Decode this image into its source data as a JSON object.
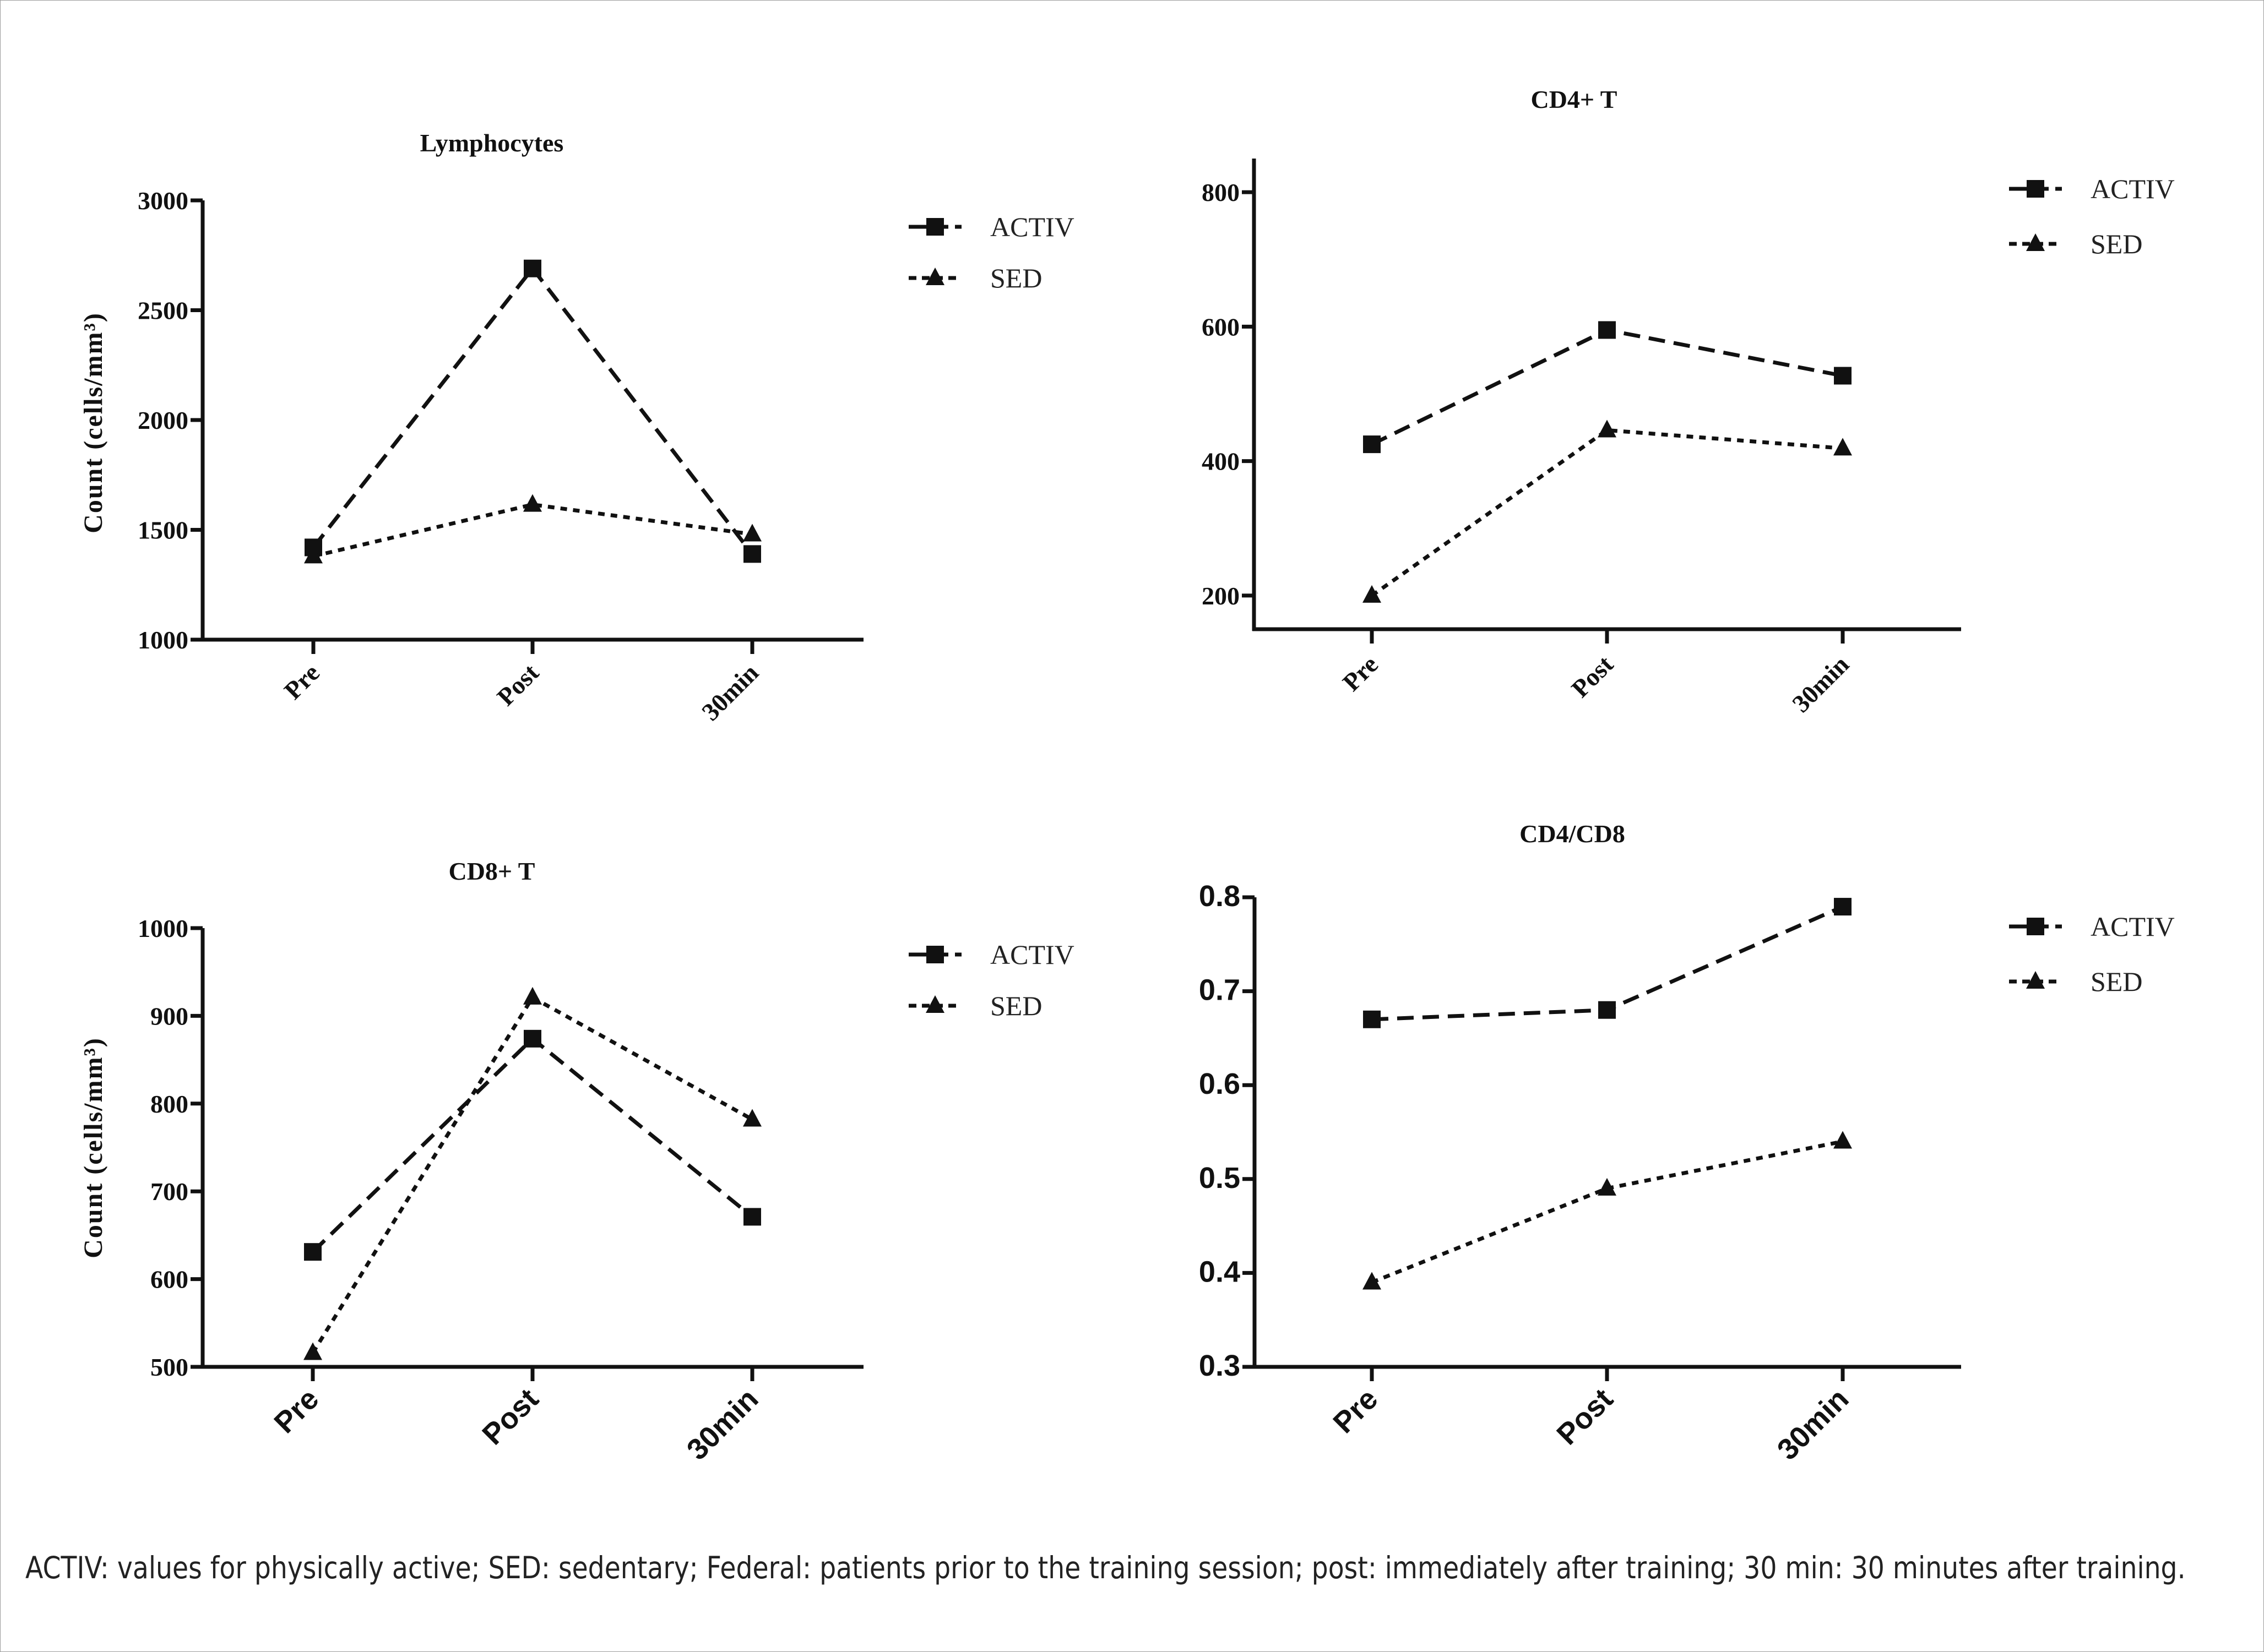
{
  "figure": {
    "caption": "ACTIV: values for physically active; SED: sedentary; Federal: patients prior to the training session; post: immediately after training; 30 min: 30 minutes after training."
  },
  "chart_data": [
    {
      "type": "line",
      "title": "Lymphocytes",
      "xlabel": "",
      "ylabel": "Count (cells/mm³)",
      "categories": [
        "Pre",
        "Post",
        "30min"
      ],
      "ylim": [
        1000,
        3000
      ],
      "yticks": [
        1000,
        1500,
        2000,
        2500,
        3000
      ],
      "ytick_labels": [
        "1000",
        "1500",
        "2000",
        "2500",
        "3000"
      ],
      "grid": false,
      "legend_position": "right",
      "series": [
        {
          "name": "ACTIV",
          "marker": "square",
          "line": "dashed",
          "values": [
            1420,
            2690,
            1390
          ]
        },
        {
          "name": "SED",
          "marker": "triangle",
          "line": "dotted",
          "values": [
            1380,
            1615,
            1480
          ]
        }
      ]
    },
    {
      "type": "line",
      "title": "CD4+ T",
      "xlabel": "",
      "ylabel": "",
      "categories": [
        "Pre",
        "Post",
        "30min"
      ],
      "ylim": [
        150,
        850
      ],
      "yticks": [
        200,
        400,
        600,
        800
      ],
      "ytick_labels": [
        "200",
        "400",
        "600",
        "800"
      ],
      "grid": false,
      "legend_position": "right",
      "series": [
        {
          "name": "ACTIV",
          "marker": "square",
          "line": "dashed",
          "values": [
            425,
            595,
            527
          ]
        },
        {
          "name": "SED",
          "marker": "triangle",
          "line": "dotted",
          "values": [
            200,
            446,
            419
          ]
        }
      ]
    },
    {
      "type": "line",
      "title": "CD8+ T",
      "xlabel": "",
      "ylabel": "Count (cells/mm³)",
      "categories": [
        "Pre",
        "Post",
        "30min"
      ],
      "ylim": [
        500,
        1000
      ],
      "yticks": [
        500,
        600,
        700,
        800,
        900,
        1000
      ],
      "ytick_labels": [
        "500",
        "600",
        "700",
        "800",
        "900",
        "1000"
      ],
      "grid": false,
      "legend_position": "right",
      "series": [
        {
          "name": "ACTIV",
          "marker": "square",
          "line": "dashed",
          "values": [
            631,
            874,
            671
          ]
        },
        {
          "name": "SED",
          "marker": "triangle",
          "line": "dotted",
          "values": [
            516,
            921,
            782
          ]
        }
      ]
    },
    {
      "type": "line",
      "title": "CD4/CD8",
      "xlabel": "",
      "ylabel": "",
      "categories": [
        "Pre",
        "Post",
        "30min"
      ],
      "ylim": [
        0.3,
        0.8
      ],
      "yticks": [
        0.3,
        0.4,
        0.5,
        0.6,
        0.7,
        0.8
      ],
      "ytick_labels": [
        "0.3",
        "0.4",
        "0.5",
        "0.6",
        "0.7",
        "0.8"
      ],
      "grid": false,
      "legend_position": "right",
      "series": [
        {
          "name": "ACTIV",
          "marker": "square",
          "line": "dashed",
          "values": [
            0.67,
            0.68,
            0.79
          ]
        },
        {
          "name": "SED",
          "marker": "triangle",
          "line": "dotted",
          "values": [
            0.39,
            0.49,
            0.54
          ]
        }
      ]
    }
  ],
  "colors": {
    "ink": "#111111",
    "caption_text": "#222222",
    "frame_border": "#9a9a9a"
  }
}
